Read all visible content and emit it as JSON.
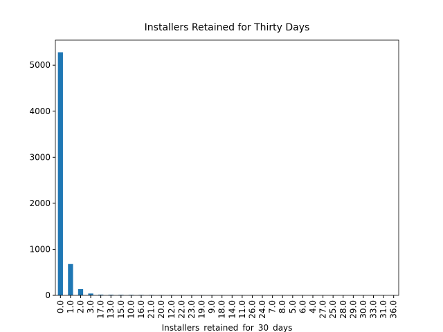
{
  "chart_data": {
    "type": "bar",
    "title": "Installers Retained for Thirty Days",
    "x_label": "Installers_retained_for_30_days",
    "categories": [
      "0.0",
      "1.0",
      "2.0",
      "3.0",
      "17.0",
      "13.0",
      "15.0",
      "10.0",
      "16.0",
      "21.0",
      "20.0",
      "12.0",
      "22.0",
      "23.0",
      "19.0",
      "9.0",
      "18.0",
      "14.0",
      "11.0",
      "26.0",
      "24.0",
      "7.0",
      "8.0",
      "5.0",
      "6.0",
      "4.0",
      "27.0",
      "25.0",
      "28.0",
      "29.0",
      "30.0",
      "33.0",
      "31.0",
      "36.0"
    ],
    "values": [
      5280,
      680,
      135,
      40,
      16,
      14,
      12,
      11,
      10,
      9,
      8,
      8,
      7,
      6,
      5,
      5,
      4,
      4,
      3,
      3,
      3,
      2,
      2,
      2,
      2,
      2,
      1,
      1,
      1,
      1,
      1,
      1,
      1,
      1
    ],
    "color": "#1f77b4",
    "ylim": [
      0,
      5544
    ],
    "yticks": [
      0,
      1000,
      2000,
      3000,
      4000,
      5000
    ],
    "grid": false
  }
}
